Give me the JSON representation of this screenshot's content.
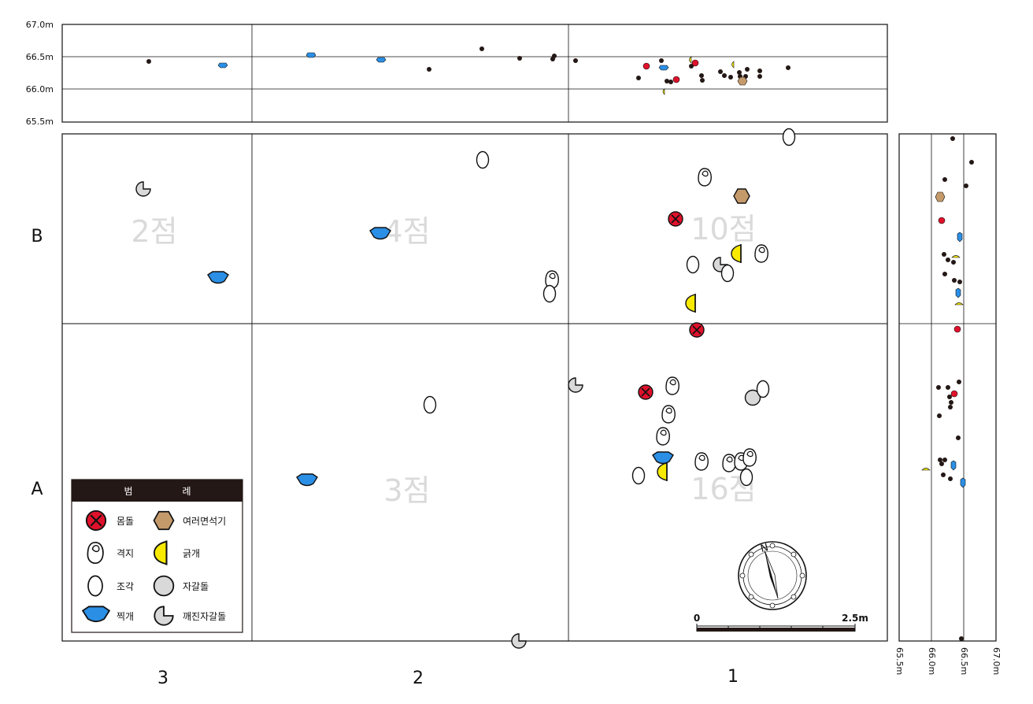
{
  "profile_top": {
    "ticks": [
      "67.0m",
      "66.5m",
      "66.0m",
      "65.5m"
    ]
  },
  "profile_side": {
    "ticks": [
      "65.5m",
      "66.0m",
      "66.5m",
      "67.0m"
    ]
  },
  "rows": {
    "b": "B",
    "a": "A"
  },
  "cols": {
    "c3": "3",
    "c2": "2",
    "c1": "1"
  },
  "counts": {
    "b3": "2점",
    "b2": "4점",
    "b1": "10점",
    "a2": "3점",
    "a1": "16점"
  },
  "legend": {
    "title_a": "범",
    "title_b": "례",
    "items": [
      {
        "label": "몸돌",
        "icon": "core-icon",
        "color": "#e0112b"
      },
      {
        "label": "여러면석기",
        "icon": "polyhedron-icon",
        "color": "#c59a6a"
      },
      {
        "label": "격지",
        "icon": "flake-icon",
        "color": "#ffffff"
      },
      {
        "label": "긁개",
        "icon": "scraper-icon",
        "color": "#f7ea00"
      },
      {
        "label": "조각",
        "icon": "chip-icon",
        "color": "#ffffff"
      },
      {
        "label": "자갈돌",
        "icon": "pebble-icon",
        "color": "#d9d9d9"
      },
      {
        "label": "찍개",
        "icon": "chopper-icon",
        "color": "#2b8fe6"
      },
      {
        "label": "깨진자갈돌",
        "icon": "broken-pebble-icon",
        "color": "#d9d9d9"
      }
    ]
  },
  "scale_bar": {
    "start": "0",
    "end": "2.5m"
  },
  "compass": {
    "north": "N"
  }
}
